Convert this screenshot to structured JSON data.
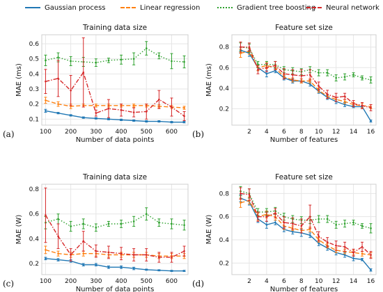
{
  "legend": {
    "items": [
      {
        "label": "Gaussian process",
        "color": "#1f77b4",
        "style": "solid"
      },
      {
        "label": "Linear regression",
        "color": "#ff7f0e",
        "style": "dashed"
      },
      {
        "label": "Gradient tree boosting",
        "color": "#2ca02c",
        "style": "dotted"
      },
      {
        "label": "Neural network",
        "color": "#d62728",
        "style": "dashdot"
      }
    ]
  },
  "panel_labels": [
    "(a)",
    "(b)",
    "(c)",
    "(d)"
  ],
  "chart_data": [
    {
      "type": "line",
      "title": "Training data size",
      "xlabel": "Number of data points",
      "ylabel": "MAE (ms)",
      "xlim": [
        85,
        665
      ],
      "ylim": [
        0.06,
        0.66
      ],
      "xticks": [
        100,
        200,
        300,
        400,
        500,
        600
      ],
      "yticks": [
        0.1,
        0.2,
        0.3,
        0.4,
        0.5,
        0.6
      ],
      "grid": true,
      "x": [
        100,
        150,
        200,
        250,
        300,
        350,
        400,
        450,
        500,
        550,
        600,
        650
      ],
      "series": [
        {
          "name": "Gaussian process",
          "values": [
            0.155,
            0.14,
            0.125,
            0.11,
            0.105,
            0.1,
            0.095,
            0.09,
            0.085,
            0.085,
            0.08,
            0.08
          ],
          "errors": [
            0.01,
            0.005,
            0.005,
            0.005,
            0.005,
            0.005,
            0.005,
            0.005,
            0.005,
            0.005,
            0.005,
            0.005
          ]
        },
        {
          "name": "Linear regression",
          "values": [
            0.225,
            0.2,
            0.185,
            0.19,
            0.19,
            0.19,
            0.19,
            0.19,
            0.19,
            0.185,
            0.18,
            0.175
          ],
          "errors": [
            0.02,
            0.015,
            0.015,
            0.01,
            0.01,
            0.01,
            0.01,
            0.01,
            0.01,
            0.01,
            0.01,
            0.01
          ]
        },
        {
          "name": "Gradient tree boosting",
          "values": [
            0.49,
            0.51,
            0.485,
            0.48,
            0.475,
            0.49,
            0.495,
            0.5,
            0.57,
            0.52,
            0.485,
            0.48
          ],
          "errors": [
            0.035,
            0.03,
            0.03,
            0.03,
            0.025,
            0.015,
            0.03,
            0.04,
            0.045,
            0.02,
            0.05,
            0.04
          ]
        },
        {
          "name": "Neural network",
          "values": [
            0.35,
            0.37,
            0.29,
            0.41,
            0.14,
            0.17,
            0.16,
            0.145,
            0.15,
            0.23,
            0.18,
            0.12
          ],
          "errors": [
            0.08,
            0.12,
            0.1,
            0.23,
            0.02,
            0.06,
            0.04,
            0.03,
            0.05,
            0.06,
            0.06,
            0.03
          ]
        }
      ]
    },
    {
      "type": "line",
      "title": "Feature set size",
      "xlabel": "Number of features",
      "ylabel": "MAE (ms)",
      "xlim": [
        0,
        16.6
      ],
      "ylim": [
        0.04,
        0.92
      ],
      "xticks": [
        2,
        4,
        6,
        8,
        10,
        12,
        14,
        16
      ],
      "yticks": [
        0.2,
        0.4,
        0.6,
        0.8
      ],
      "grid": true,
      "x": [
        1,
        2,
        3,
        4,
        5,
        6,
        7,
        8,
        9,
        10,
        11,
        12,
        13,
        14,
        15,
        16
      ],
      "series": [
        {
          "name": "Gaussian process",
          "values": [
            0.77,
            0.74,
            0.6,
            0.54,
            0.57,
            0.5,
            0.47,
            0.47,
            0.44,
            0.37,
            0.31,
            0.27,
            0.24,
            0.22,
            0.22,
            0.08
          ],
          "errors": [
            0.03,
            0.03,
            0.03,
            0.03,
            0.02,
            0.02,
            0.02,
            0.02,
            0.02,
            0.02,
            0.02,
            0.02,
            0.02,
            0.01,
            0.01,
            0.01
          ]
        },
        {
          "name": "Linear regression",
          "values": [
            0.74,
            0.76,
            0.6,
            0.62,
            0.6,
            0.51,
            0.48,
            0.47,
            0.47,
            0.38,
            0.32,
            0.29,
            0.27,
            0.24,
            0.23,
            0.22
          ],
          "errors": [
            0.04,
            0.03,
            0.03,
            0.03,
            0.02,
            0.02,
            0.02,
            0.02,
            0.02,
            0.02,
            0.02,
            0.02,
            0.02,
            0.02,
            0.02,
            0.02
          ]
        },
        {
          "name": "Gradient tree boosting",
          "values": [
            0.8,
            0.79,
            0.63,
            0.63,
            0.63,
            0.58,
            0.57,
            0.56,
            0.58,
            0.55,
            0.55,
            0.5,
            0.51,
            0.53,
            0.5,
            0.48
          ],
          "errors": [
            0.04,
            0.04,
            0.03,
            0.03,
            0.03,
            0.03,
            0.03,
            0.03,
            0.03,
            0.03,
            0.03,
            0.03,
            0.03,
            0.02,
            0.02,
            0.03
          ]
        },
        {
          "name": "Neural network",
          "values": [
            0.8,
            0.8,
            0.58,
            0.6,
            0.62,
            0.54,
            0.53,
            0.52,
            0.53,
            0.42,
            0.34,
            0.31,
            0.32,
            0.25,
            0.23,
            0.21
          ],
          "errors": [
            0.05,
            0.04,
            0.04,
            0.04,
            0.04,
            0.05,
            0.05,
            0.06,
            0.05,
            0.04,
            0.04,
            0.04,
            0.03,
            0.03,
            0.03,
            0.03
          ]
        }
      ]
    },
    {
      "type": "line",
      "title": "Training data size",
      "xlabel": "Number of data points",
      "ylabel": "MAE (W)",
      "xlim": [
        85,
        665
      ],
      "ylim": [
        0.11,
        0.84
      ],
      "xticks": [
        100,
        200,
        300,
        400,
        500,
        600
      ],
      "yticks": [
        0.2,
        0.4,
        0.6,
        0.8
      ],
      "grid": true,
      "x": [
        100,
        150,
        200,
        250,
        300,
        350,
        400,
        450,
        500,
        550,
        600,
        650
      ],
      "series": [
        {
          "name": "Gaussian process",
          "values": [
            0.24,
            0.23,
            0.22,
            0.19,
            0.19,
            0.17,
            0.17,
            0.16,
            0.15,
            0.145,
            0.14,
            0.14
          ],
          "errors": [
            0.01,
            0.01,
            0.01,
            0.01,
            0.01,
            0.01,
            0.01,
            0.01,
            0.005,
            0.005,
            0.005,
            0.005
          ]
        },
        {
          "name": "Linear regression",
          "values": [
            0.31,
            0.28,
            0.27,
            0.28,
            0.28,
            0.27,
            0.27,
            0.27,
            0.27,
            0.26,
            0.26,
            0.26
          ],
          "errors": [
            0.03,
            0.02,
            0.02,
            0.02,
            0.02,
            0.02,
            0.02,
            0.02,
            0.02,
            0.02,
            0.02,
            0.02
          ]
        },
        {
          "name": "Gradient tree boosting",
          "values": [
            0.53,
            0.56,
            0.5,
            0.52,
            0.49,
            0.52,
            0.52,
            0.54,
            0.6,
            0.53,
            0.52,
            0.51
          ],
          "errors": [
            0.05,
            0.04,
            0.04,
            0.04,
            0.03,
            0.02,
            0.03,
            0.04,
            0.05,
            0.03,
            0.04,
            0.04
          ]
        },
        {
          "name": "Neural network",
          "values": [
            0.59,
            0.42,
            0.27,
            0.38,
            0.3,
            0.29,
            0.28,
            0.27,
            0.27,
            0.25,
            0.25,
            0.3
          ],
          "errors": [
            0.22,
            0.1,
            0.05,
            0.08,
            0.05,
            0.05,
            0.05,
            0.05,
            0.05,
            0.04,
            0.04,
            0.04
          ]
        }
      ]
    },
    {
      "type": "line",
      "title": "Feature set size",
      "xlabel": "Number of features",
      "ylabel": "MAE (W)",
      "xlim": [
        0,
        16.6
      ],
      "ylim": [
        0.1,
        0.88
      ],
      "xticks": [
        2,
        4,
        6,
        8,
        10,
        12,
        14,
        16
      ],
      "yticks": [
        0.2,
        0.4,
        0.6,
        0.8
      ],
      "grid": true,
      "x": [
        1,
        2,
        3,
        4,
        5,
        6,
        7,
        8,
        9,
        10,
        11,
        12,
        13,
        14,
        15,
        16
      ],
      "series": [
        {
          "name": "Gaussian process",
          "values": [
            0.76,
            0.73,
            0.58,
            0.53,
            0.55,
            0.49,
            0.47,
            0.46,
            0.44,
            0.37,
            0.33,
            0.29,
            0.27,
            0.24,
            0.23,
            0.14
          ],
          "errors": [
            0.03,
            0.03,
            0.03,
            0.03,
            0.02,
            0.02,
            0.02,
            0.03,
            0.02,
            0.02,
            0.02,
            0.02,
            0.02,
            0.02,
            0.01,
            0.01
          ]
        },
        {
          "name": "Linear regression",
          "values": [
            0.72,
            0.74,
            0.6,
            0.62,
            0.6,
            0.52,
            0.5,
            0.48,
            0.49,
            0.4,
            0.35,
            0.31,
            0.3,
            0.29,
            0.28,
            0.27
          ],
          "errors": [
            0.04,
            0.03,
            0.03,
            0.03,
            0.03,
            0.03,
            0.02,
            0.02,
            0.02,
            0.02,
            0.02,
            0.02,
            0.02,
            0.02,
            0.02,
            0.02
          ]
        },
        {
          "name": "Gradient tree boosting",
          "values": [
            0.82,
            0.8,
            0.64,
            0.64,
            0.65,
            0.6,
            0.58,
            0.57,
            0.57,
            0.58,
            0.58,
            0.53,
            0.54,
            0.55,
            0.52,
            0.5
          ],
          "errors": [
            0.04,
            0.04,
            0.03,
            0.03,
            0.03,
            0.03,
            0.03,
            0.03,
            0.03,
            0.03,
            0.03,
            0.03,
            0.03,
            0.02,
            0.02,
            0.04
          ]
        },
        {
          "name": "Neural network",
          "values": [
            0.8,
            0.79,
            0.6,
            0.6,
            0.63,
            0.55,
            0.54,
            0.52,
            0.6,
            0.43,
            0.38,
            0.35,
            0.34,
            0.29,
            0.34,
            0.27
          ],
          "errors": [
            0.05,
            0.05,
            0.04,
            0.04,
            0.04,
            0.05,
            0.05,
            0.06,
            0.1,
            0.04,
            0.04,
            0.04,
            0.04,
            0.03,
            0.04,
            0.03
          ]
        }
      ]
    }
  ]
}
